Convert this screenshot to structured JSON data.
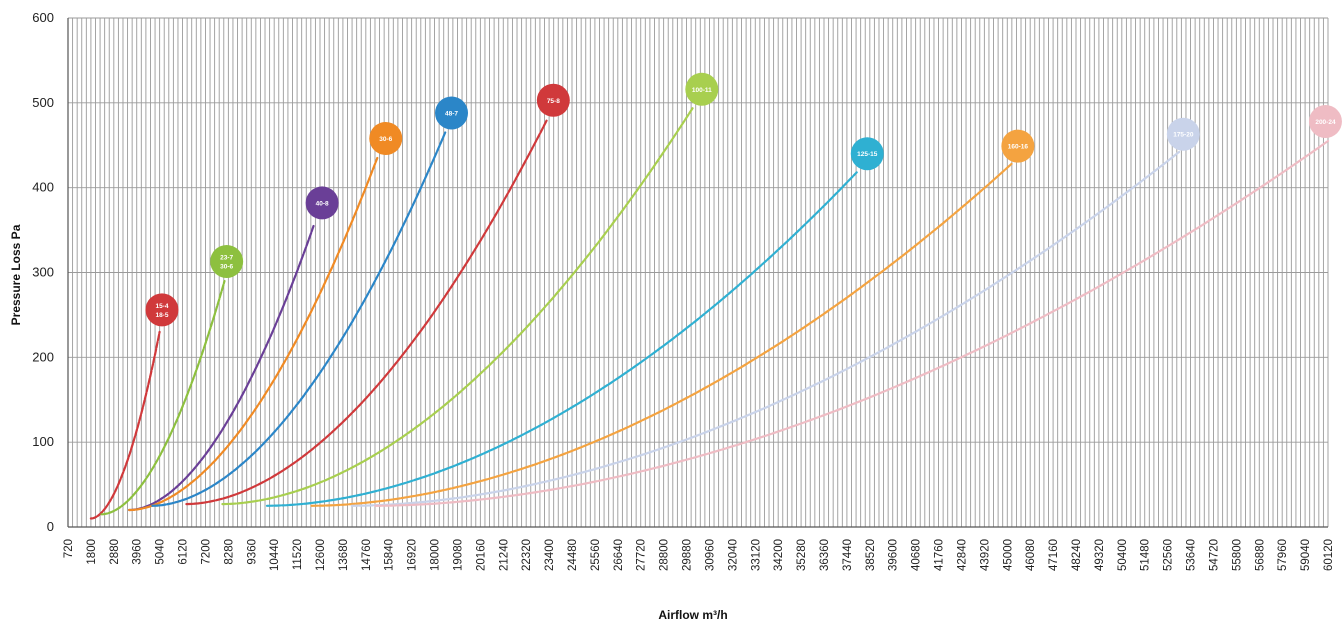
{
  "chart_data": {
    "type": "line",
    "title": "",
    "xlabel": "Airflow m³/h",
    "ylabel": "Pressure Loss Pa",
    "xlim": [
      720,
      60120
    ],
    "ylim": [
      0,
      600
    ],
    "yticks": [
      0,
      100,
      200,
      300,
      400,
      500,
      600
    ],
    "xticks": [
      720,
      1800,
      2880,
      3960,
      5040,
      6120,
      7200,
      8280,
      9360,
      10440,
      11520,
      12600,
      13680,
      14760,
      15840,
      16920,
      18000,
      19080,
      20160,
      21240,
      22320,
      23400,
      24480,
      25560,
      26640,
      27720,
      28800,
      29880,
      30960,
      32040,
      33120,
      34200,
      35280,
      36360,
      37440,
      38520,
      39600,
      40680,
      41760,
      42840,
      43920,
      45000,
      46080,
      47160,
      48240,
      49320,
      50400,
      51480,
      52560,
      53640,
      54720,
      55800,
      56880,
      57960,
      59040,
      60120
    ],
    "grid": true,
    "series": [
      {
        "name": "15-4 18-5",
        "label_lines": [
          "15-4",
          "18-5"
        ],
        "color": "#d0393b",
        "x_start": 1800,
        "y_start": 10,
        "x_end": 5040,
        "y_end": 230,
        "label_x": 5150,
        "label_y": 256
      },
      {
        "name": "23-7 30-6",
        "label_lines": [
          "23-7",
          "30-6"
        ],
        "color": "#8dc03f",
        "x_start": 2300,
        "y_start": 15,
        "x_end": 8100,
        "y_end": 290,
        "label_x": 8200,
        "label_y": 313
      },
      {
        "name": "40-8",
        "label_lines": [
          "40-8"
        ],
        "color": "#6a3f97",
        "x_start": 3600,
        "y_start": 20,
        "x_end": 12300,
        "y_end": 355,
        "label_x": 12700,
        "label_y": 382
      },
      {
        "name": "30-6",
        "label_lines": [
          "30-6"
        ],
        "color": "#f08a24",
        "x_start": 3600,
        "y_start": 20,
        "x_end": 15300,
        "y_end": 435,
        "label_x": 15700,
        "label_y": 458
      },
      {
        "name": "48-7",
        "label_lines": [
          "48-7"
        ],
        "color": "#2b86c8",
        "x_start": 4700,
        "y_start": 25,
        "x_end": 18500,
        "y_end": 465,
        "label_x": 18800,
        "label_y": 488
      },
      {
        "name": "75-8",
        "label_lines": [
          "75-8"
        ],
        "color": "#d0393b",
        "x_start": 6300,
        "y_start": 27,
        "x_end": 23300,
        "y_end": 480,
        "label_x": 23600,
        "label_y": 503
      },
      {
        "name": "100-11",
        "label_lines": [
          "100-11"
        ],
        "color": "#a8cf4f",
        "x_start": 8000,
        "y_start": 27,
        "x_end": 30200,
        "y_end": 495,
        "label_x": 30600,
        "label_y": 516
      },
      {
        "name": "125-15",
        "label_lines": [
          "125-15"
        ],
        "color": "#2fb0d2",
        "x_start": 10100,
        "y_start": 25,
        "x_end": 37900,
        "y_end": 418,
        "label_x": 38400,
        "label_y": 440
      },
      {
        "name": "160-16",
        "label_lines": [
          "160-16"
        ],
        "color": "#f4a340",
        "x_start": 12200,
        "y_start": 25,
        "x_end": 45200,
        "y_end": 428,
        "label_x": 45500,
        "label_y": 449
      },
      {
        "name": "175-20",
        "label_lines": [
          "175-20"
        ],
        "color": "#c9d3ea",
        "x_start": 14100,
        "y_start": 25,
        "x_end": 53100,
        "y_end": 442,
        "label_x": 53300,
        "label_y": 463
      },
      {
        "name": "200-24",
        "label_lines": [
          "200-24"
        ],
        "color": "#efbcc4",
        "x_start": 15200,
        "y_start": 25,
        "x_end": 60120,
        "y_end": 455,
        "label_x": 60000,
        "label_y": 478
      }
    ]
  }
}
